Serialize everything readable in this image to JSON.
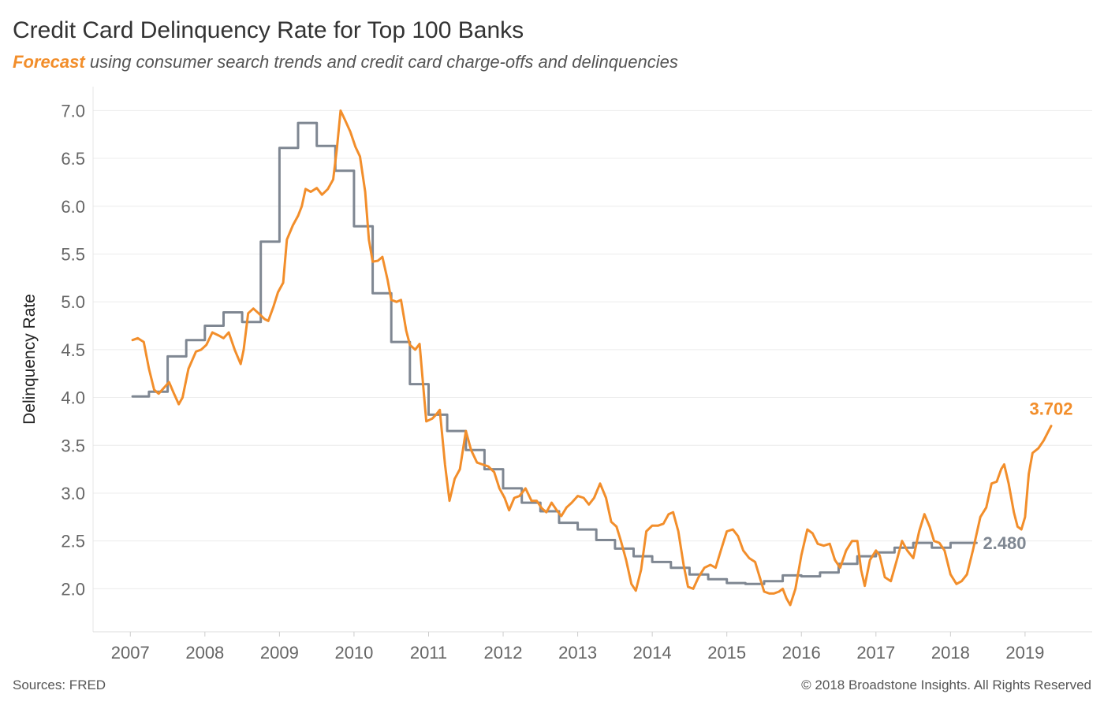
{
  "header": {
    "title": "Credit Card Delinquency Rate for Top 100 Banks",
    "subtitle_accent": "Forecast",
    "subtitle_rest": "using consumer search trends and credit card charge-offs and delinquencies"
  },
  "footer": {
    "sources": "Sources: FRED",
    "copyright": "© 2018 Broadstone Insights. All Rights Reserved"
  },
  "chart_data": {
    "type": "line",
    "ylabel": "Delinquency Rate",
    "xlabel": "",
    "xlim": [
      2006.5,
      2019.9
    ],
    "ylim": [
      1.55,
      7.25
    ],
    "yticks": [
      "2.0",
      "2.5",
      "3.0",
      "3.5",
      "4.0",
      "4.5",
      "5.0",
      "5.5",
      "6.0",
      "6.5",
      "7.0"
    ],
    "xticks": [
      "2007",
      "2008",
      "2009",
      "2010",
      "2011",
      "2012",
      "2013",
      "2014",
      "2015",
      "2016",
      "2017",
      "2018",
      "2019"
    ],
    "grid": "horizontal",
    "series": [
      {
        "key": "actual",
        "color": "#7f8792",
        "step": true,
        "end_label": "2.480",
        "points": [
          [
            2007.03,
            4.01
          ],
          [
            2007.25,
            4.06
          ],
          [
            2007.5,
            4.43
          ],
          [
            2007.75,
            4.6
          ],
          [
            2008.0,
            4.75
          ],
          [
            2008.25,
            4.89
          ],
          [
            2008.5,
            4.79
          ],
          [
            2008.75,
            5.63
          ],
          [
            2009.0,
            6.61
          ],
          [
            2009.25,
            6.87
          ],
          [
            2009.5,
            6.63
          ],
          [
            2009.75,
            6.37
          ],
          [
            2010.0,
            5.79
          ],
          [
            2010.25,
            5.09
          ],
          [
            2010.5,
            4.58
          ],
          [
            2010.75,
            4.14
          ],
          [
            2011.0,
            3.82
          ],
          [
            2011.25,
            3.65
          ],
          [
            2011.5,
            3.45
          ],
          [
            2011.75,
            3.25
          ],
          [
            2012.0,
            3.05
          ],
          [
            2012.25,
            2.9
          ],
          [
            2012.5,
            2.81
          ],
          [
            2012.75,
            2.69
          ],
          [
            2013.0,
            2.62
          ],
          [
            2013.25,
            2.51
          ],
          [
            2013.5,
            2.42
          ],
          [
            2013.75,
            2.34
          ],
          [
            2014.0,
            2.28
          ],
          [
            2014.25,
            2.22
          ],
          [
            2014.5,
            2.15
          ],
          [
            2014.75,
            2.1
          ],
          [
            2015.0,
            2.06
          ],
          [
            2015.25,
            2.05
          ],
          [
            2015.5,
            2.08
          ],
          [
            2015.75,
            2.14
          ],
          [
            2016.0,
            2.13
          ],
          [
            2016.25,
            2.17
          ],
          [
            2016.5,
            2.26
          ],
          [
            2016.75,
            2.34
          ],
          [
            2017.0,
            2.38
          ],
          [
            2017.25,
            2.43
          ],
          [
            2017.5,
            2.48
          ],
          [
            2017.75,
            2.43
          ],
          [
            2018.0,
            2.48
          ],
          [
            2018.35,
            2.48
          ]
        ]
      },
      {
        "key": "forecast",
        "color": "#f28e2b",
        "step": false,
        "end_label": "3.702",
        "points": [
          [
            2007.03,
            4.6
          ],
          [
            2007.1,
            4.62
          ],
          [
            2007.18,
            4.58
          ],
          [
            2007.25,
            4.3
          ],
          [
            2007.32,
            4.08
          ],
          [
            2007.38,
            4.04
          ],
          [
            2007.45,
            4.1
          ],
          [
            2007.52,
            4.16
          ],
          [
            2007.58,
            4.05
          ],
          [
            2007.65,
            3.93
          ],
          [
            2007.7,
            4.0
          ],
          [
            2007.78,
            4.3
          ],
          [
            2007.88,
            4.48
          ],
          [
            2007.95,
            4.5
          ],
          [
            2008.02,
            4.55
          ],
          [
            2008.1,
            4.68
          ],
          [
            2008.18,
            4.65
          ],
          [
            2008.25,
            4.62
          ],
          [
            2008.32,
            4.68
          ],
          [
            2008.4,
            4.5
          ],
          [
            2008.48,
            4.35
          ],
          [
            2008.52,
            4.5
          ],
          [
            2008.58,
            4.88
          ],
          [
            2008.65,
            4.93
          ],
          [
            2008.72,
            4.88
          ],
          [
            2008.8,
            4.82
          ],
          [
            2008.85,
            4.8
          ],
          [
            2008.92,
            4.95
          ],
          [
            2008.98,
            5.1
          ],
          [
            2009.05,
            5.2
          ],
          [
            2009.1,
            5.65
          ],
          [
            2009.18,
            5.8
          ],
          [
            2009.25,
            5.9
          ],
          [
            2009.3,
            6.0
          ],
          [
            2009.35,
            6.18
          ],
          [
            2009.42,
            6.15
          ],
          [
            2009.5,
            6.19
          ],
          [
            2009.57,
            6.12
          ],
          [
            2009.65,
            6.18
          ],
          [
            2009.72,
            6.28
          ],
          [
            2009.77,
            6.6
          ],
          [
            2009.82,
            7.0
          ],
          [
            2009.88,
            6.9
          ],
          [
            2009.95,
            6.78
          ],
          [
            2010.02,
            6.62
          ],
          [
            2010.08,
            6.52
          ],
          [
            2010.15,
            6.15
          ],
          [
            2010.2,
            5.65
          ],
          [
            2010.25,
            5.42
          ],
          [
            2010.32,
            5.43
          ],
          [
            2010.38,
            5.47
          ],
          [
            2010.45,
            5.23
          ],
          [
            2010.5,
            5.02
          ],
          [
            2010.57,
            5.0
          ],
          [
            2010.63,
            5.02
          ],
          [
            2010.7,
            4.7
          ],
          [
            2010.75,
            4.55
          ],
          [
            2010.82,
            4.5
          ],
          [
            2010.88,
            4.56
          ],
          [
            2010.93,
            4.1
          ],
          [
            2010.97,
            3.75
          ],
          [
            2011.05,
            3.78
          ],
          [
            2011.1,
            3.82
          ],
          [
            2011.15,
            3.87
          ],
          [
            2011.22,
            3.3
          ],
          [
            2011.28,
            2.92
          ],
          [
            2011.35,
            3.15
          ],
          [
            2011.42,
            3.25
          ],
          [
            2011.5,
            3.65
          ],
          [
            2011.57,
            3.45
          ],
          [
            2011.65,
            3.32
          ],
          [
            2011.72,
            3.3
          ],
          [
            2011.8,
            3.28
          ],
          [
            2011.88,
            3.22
          ],
          [
            2011.95,
            3.05
          ],
          [
            2012.02,
            2.95
          ],
          [
            2012.08,
            2.82
          ],
          [
            2012.15,
            2.95
          ],
          [
            2012.22,
            2.97
          ],
          [
            2012.3,
            3.05
          ],
          [
            2012.38,
            2.92
          ],
          [
            2012.45,
            2.92
          ],
          [
            2012.52,
            2.84
          ],
          [
            2012.58,
            2.8
          ],
          [
            2012.65,
            2.9
          ],
          [
            2012.72,
            2.82
          ],
          [
            2012.78,
            2.76
          ],
          [
            2012.85,
            2.85
          ],
          [
            2012.92,
            2.9
          ],
          [
            2013.0,
            2.97
          ],
          [
            2013.08,
            2.95
          ],
          [
            2013.15,
            2.88
          ],
          [
            2013.22,
            2.95
          ],
          [
            2013.3,
            3.1
          ],
          [
            2013.38,
            2.95
          ],
          [
            2013.45,
            2.7
          ],
          [
            2013.52,
            2.65
          ],
          [
            2013.58,
            2.5
          ],
          [
            2013.65,
            2.3
          ],
          [
            2013.72,
            2.05
          ],
          [
            2013.78,
            1.98
          ],
          [
            2013.85,
            2.2
          ],
          [
            2013.92,
            2.6
          ],
          [
            2014.0,
            2.66
          ],
          [
            2014.08,
            2.66
          ],
          [
            2014.15,
            2.68
          ],
          [
            2014.22,
            2.78
          ],
          [
            2014.28,
            2.8
          ],
          [
            2014.35,
            2.6
          ],
          [
            2014.42,
            2.25
          ],
          [
            2014.48,
            2.02
          ],
          [
            2014.55,
            2.0
          ],
          [
            2014.62,
            2.12
          ],
          [
            2014.7,
            2.22
          ],
          [
            2014.78,
            2.25
          ],
          [
            2014.85,
            2.22
          ],
          [
            2014.92,
            2.4
          ],
          [
            2015.0,
            2.6
          ],
          [
            2015.08,
            2.62
          ],
          [
            2015.15,
            2.55
          ],
          [
            2015.22,
            2.4
          ],
          [
            2015.3,
            2.32
          ],
          [
            2015.38,
            2.28
          ],
          [
            2015.45,
            2.1
          ],
          [
            2015.5,
            1.97
          ],
          [
            2015.57,
            1.95
          ],
          [
            2015.63,
            1.95
          ],
          [
            2015.7,
            1.97
          ],
          [
            2015.75,
            2.0
          ],
          [
            2015.8,
            1.9
          ],
          [
            2015.85,
            1.83
          ],
          [
            2015.92,
            2.0
          ],
          [
            2016.0,
            2.35
          ],
          [
            2016.08,
            2.62
          ],
          [
            2016.15,
            2.58
          ],
          [
            2016.22,
            2.47
          ],
          [
            2016.3,
            2.45
          ],
          [
            2016.38,
            2.47
          ],
          [
            2016.45,
            2.3
          ],
          [
            2016.52,
            2.22
          ],
          [
            2016.6,
            2.4
          ],
          [
            2016.68,
            2.5
          ],
          [
            2016.75,
            2.5
          ],
          [
            2016.8,
            2.2
          ],
          [
            2016.85,
            2.03
          ],
          [
            2016.92,
            2.3
          ],
          [
            2017.0,
            2.4
          ],
          [
            2017.05,
            2.35
          ],
          [
            2017.12,
            2.12
          ],
          [
            2017.2,
            2.08
          ],
          [
            2017.28,
            2.3
          ],
          [
            2017.35,
            2.5
          ],
          [
            2017.42,
            2.4
          ],
          [
            2017.5,
            2.32
          ],
          [
            2017.58,
            2.6
          ],
          [
            2017.65,
            2.78
          ],
          [
            2017.72,
            2.65
          ],
          [
            2017.78,
            2.5
          ],
          [
            2017.85,
            2.48
          ],
          [
            2017.92,
            2.4
          ],
          [
            2018.0,
            2.15
          ],
          [
            2018.08,
            2.05
          ],
          [
            2018.15,
            2.08
          ],
          [
            2018.22,
            2.15
          ],
          [
            2018.3,
            2.4
          ],
          [
            2018.4,
            2.75
          ],
          [
            2018.48,
            2.85
          ],
          [
            2018.55,
            3.1
          ],
          [
            2018.62,
            3.12
          ],
          [
            2018.68,
            3.25
          ],
          [
            2018.72,
            3.3
          ],
          [
            2018.78,
            3.1
          ],
          [
            2018.85,
            2.8
          ],
          [
            2018.9,
            2.65
          ],
          [
            2018.95,
            2.62
          ],
          [
            2019.0,
            2.75
          ],
          [
            2019.05,
            3.2
          ],
          [
            2019.1,
            3.42
          ],
          [
            2019.18,
            3.47
          ],
          [
            2019.25,
            3.55
          ],
          [
            2019.35,
            3.702
          ]
        ]
      }
    ]
  }
}
